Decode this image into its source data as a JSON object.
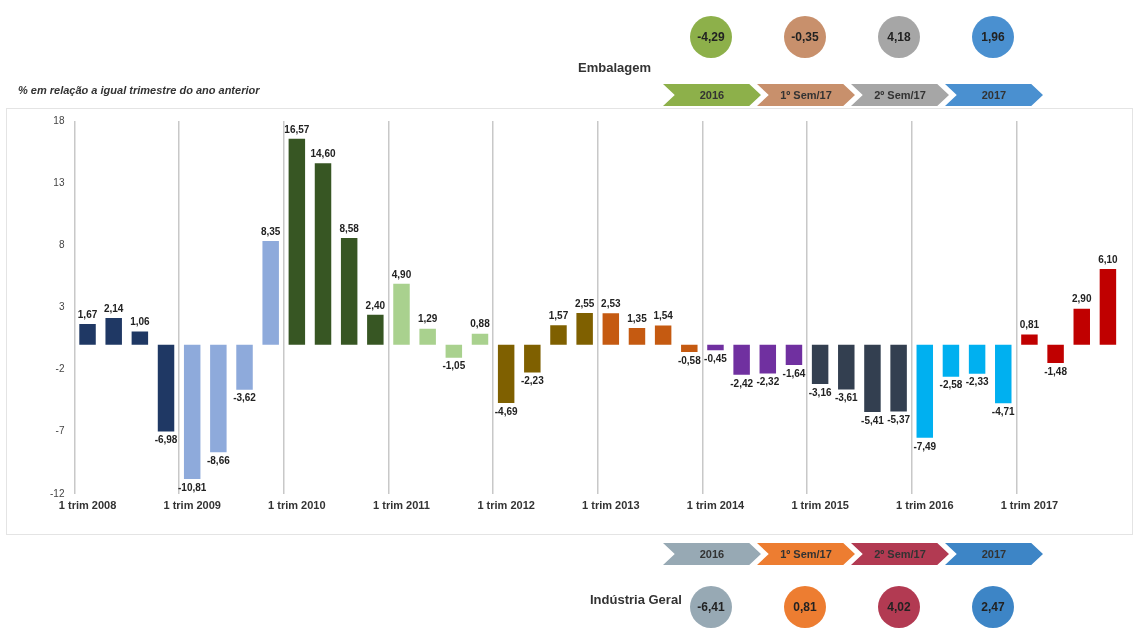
{
  "chart_data": {
    "type": "bar",
    "ylabel": "% em relação a igual trimestre do ano anterior",
    "categories": [
      "1 trim 2008",
      null,
      null,
      null,
      "1 trim 2009",
      null,
      null,
      null,
      "1 trim 2010",
      null,
      null,
      null,
      "1 trim 2011",
      null,
      null,
      null,
      "1 trim 2012",
      null,
      null,
      null,
      "1 trim 2013",
      null,
      null,
      null,
      "1 trim 2014",
      null,
      null,
      null,
      "1 trim 2015",
      null,
      null,
      null,
      "1 trim 2016",
      null,
      null,
      null,
      "1 trim 2017",
      null,
      null,
      null
    ],
    "values": [
      1.67,
      2.14,
      1.06,
      -6.98,
      -10.81,
      -8.66,
      -3.62,
      8.35,
      16.57,
      14.6,
      8.58,
      2.4,
      4.9,
      1.29,
      -1.05,
      0.88,
      -4.69,
      -2.23,
      1.57,
      2.55,
      2.53,
      1.35,
      1.54,
      -0.58,
      -0.45,
      -2.42,
      -2.32,
      -1.64,
      -3.16,
      -3.61,
      -5.41,
      -5.37,
      -7.49,
      -2.58,
      -2.33,
      -4.71,
      0.81,
      -1.48,
      2.9,
      6.1
    ],
    "value_labels": [
      "1,67",
      "2,14",
      "1,06",
      "-6,98",
      "-10,81",
      "-8,66",
      "-3,62",
      "8,35",
      "16,57",
      "14,60",
      "8,58",
      "2,40",
      "4,90",
      "1,29",
      "-1,05",
      "0,88",
      "-4,69",
      "-2,23",
      "1,57",
      "2,55",
      "2,53",
      "1,35",
      "1,54",
      "-0,58",
      "-0,45",
      "-2,42",
      "-2,32",
      "-1,64",
      "-3,16",
      "-3,61",
      "-5,41",
      "-5,37",
      "-7,49",
      "-2,58",
      "-2,33",
      "-4,71",
      "0,81",
      "-1,48",
      "2,90",
      "6,10"
    ],
    "colors": [
      "#1f3864",
      "#1f3864",
      "#1f3864",
      "#1f3864",
      "#8eaadb",
      "#8eaadb",
      "#8eaadb",
      "#8eaadb",
      "#375623",
      "#375623",
      "#375623",
      "#375623",
      "#a9d18e",
      "#a9d18e",
      "#a9d18e",
      "#a9d18e",
      "#7f6000",
      "#7f6000",
      "#7f6000",
      "#7f6000",
      "#c55a11",
      "#c55a11",
      "#c55a11",
      "#c55a11",
      "#7030a0",
      "#7030a0",
      "#7030a0",
      "#7030a0",
      "#333f50",
      "#333f50",
      "#333f50",
      "#333f50",
      "#00b0f0",
      "#00b0f0",
      "#00b0f0",
      "#00b0f0",
      "#c00000",
      "#c00000",
      "#c00000",
      "#c00000"
    ],
    "ylim": [
      -12,
      18
    ],
    "yticks": [
      -12,
      -7,
      -2,
      3,
      8,
      13,
      18
    ],
    "grid": "x",
    "annotations": [
      "Embalagem",
      "2016",
      "1º Sem/17",
      "2º Sem/17",
      "2017",
      "-4,29",
      "-0,35",
      "4,18",
      "1,96",
      "Indústria Geral",
      "2016",
      "1º Sem/17",
      "2º Sem/17",
      "2017",
      "-6,41",
      "0,81",
      "4,02",
      "2,47"
    ]
  }
}
